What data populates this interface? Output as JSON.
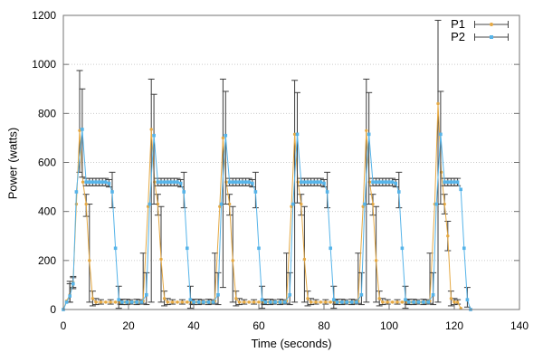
{
  "figure": {
    "background": "#ffffff",
    "border_color": "#737373",
    "tick_color": "#737373",
    "grid_color": "#cccccc",
    "errorbar_color": "#3c3c3c",
    "legend_line_color": "#444444"
  },
  "chart_data": {
    "type": "line",
    "style": "yerrorlines",
    "title": "",
    "xlabel": "Time (seconds)",
    "ylabel": "Power (watts)",
    "xlim": [
      0,
      140
    ],
    "ylim": [
      0,
      1200
    ],
    "x_ticks": [
      0,
      20,
      40,
      60,
      80,
      100,
      120,
      140
    ],
    "y_ticks": [
      0,
      200,
      400,
      600,
      800,
      1000,
      1200
    ],
    "grid": "horizontal-dotted",
    "legend_position": "top-right-inside",
    "point_format": [
      "time_s",
      "watts",
      "err_low",
      "err_high"
    ],
    "series": [
      {
        "name": "P1",
        "color": "#E5A944",
        "marker": "dot",
        "points": [
          [
            0,
            0
          ],
          [
            1,
            35
          ],
          [
            2,
            60,
            30,
            115
          ],
          [
            3,
            110,
            90,
            135
          ],
          [
            4,
            430
          ],
          [
            5,
            730,
            560,
            975
          ],
          [
            6,
            520
          ],
          [
            7,
            430,
            380,
            470
          ],
          [
            8,
            200,
            30,
            430
          ],
          [
            9,
            45,
            15,
            75
          ],
          [
            10,
            30,
            20,
            45
          ],
          [
            11.5,
            30,
            22,
            40
          ],
          [
            13,
            30
          ],
          [
            14.5,
            30,
            22,
            40
          ],
          [
            16,
            30
          ],
          [
            17.5,
            30,
            22,
            40
          ],
          [
            19,
            30
          ],
          [
            20.5,
            30,
            22,
            40
          ],
          [
            22,
            30
          ],
          [
            23.5,
            30,
            22,
            40
          ],
          [
            24.5,
            35,
            25,
            230
          ],
          [
            26,
            420
          ],
          [
            27,
            735,
            30,
            940
          ],
          [
            28,
            520
          ],
          [
            29,
            430,
            385,
            470
          ],
          [
            30,
            205,
            30,
            420
          ],
          [
            31,
            45,
            15,
            75
          ],
          [
            32,
            30,
            20,
            45
          ],
          [
            33.5,
            30,
            22,
            40
          ],
          [
            35,
            30
          ],
          [
            36.5,
            30,
            22,
            40
          ],
          [
            38,
            30
          ],
          [
            39.5,
            30,
            22,
            40
          ],
          [
            41,
            30
          ],
          [
            42.5,
            30,
            22,
            40
          ],
          [
            44,
            30
          ],
          [
            45.5,
            30,
            22,
            40
          ],
          [
            46.5,
            35,
            25,
            230
          ],
          [
            48,
            420
          ],
          [
            49,
            700,
            90,
            940
          ],
          [
            50,
            520
          ],
          [
            51,
            430,
            385,
            470
          ],
          [
            52,
            200,
            30,
            420
          ],
          [
            53,
            45,
            15,
            75
          ],
          [
            54,
            30,
            20,
            45
          ],
          [
            55.5,
            30,
            22,
            40
          ],
          [
            57,
            30
          ],
          [
            58.5,
            30,
            22,
            40
          ],
          [
            60,
            30
          ],
          [
            61.5,
            30,
            22,
            40
          ],
          [
            63,
            30
          ],
          [
            64.5,
            30,
            22,
            40
          ],
          [
            66,
            30
          ],
          [
            67.5,
            30,
            22,
            40
          ],
          [
            68.5,
            35,
            25,
            230
          ],
          [
            70,
            420
          ],
          [
            71,
            715,
            30,
            935
          ],
          [
            72,
            520
          ],
          [
            73,
            430,
            385,
            470
          ],
          [
            74,
            205,
            30,
            420
          ],
          [
            75,
            45,
            15,
            75
          ],
          [
            76,
            30,
            20,
            45
          ],
          [
            77.5,
            30,
            22,
            40
          ],
          [
            79,
            30
          ],
          [
            80.5,
            30,
            22,
            40
          ],
          [
            82,
            30
          ],
          [
            83.5,
            30,
            22,
            40
          ],
          [
            85,
            30
          ],
          [
            86.5,
            30,
            22,
            40
          ],
          [
            88,
            30
          ],
          [
            89.5,
            30,
            22,
            40
          ],
          [
            90.5,
            35,
            25,
            230
          ],
          [
            92,
            420
          ],
          [
            93,
            730,
            30,
            940
          ],
          [
            94,
            520
          ],
          [
            95,
            430,
            385,
            470
          ],
          [
            96,
            200,
            30,
            420
          ],
          [
            97,
            45,
            15,
            75
          ],
          [
            98,
            30,
            20,
            45
          ],
          [
            99.5,
            30,
            22,
            40
          ],
          [
            101,
            30
          ],
          [
            102.5,
            30,
            22,
            40
          ],
          [
            104,
            30
          ],
          [
            105.5,
            30,
            22,
            40
          ],
          [
            107,
            30
          ],
          [
            108.5,
            30,
            22,
            40
          ],
          [
            110,
            30
          ],
          [
            111.5,
            30,
            22,
            40
          ],
          [
            112.5,
            35,
            25,
            230
          ],
          [
            114,
            430
          ],
          [
            115,
            840,
            30,
            1180
          ],
          [
            116,
            560
          ],
          [
            117,
            430,
            390,
            470
          ],
          [
            118,
            300,
            240,
            360
          ],
          [
            119,
            45,
            15,
            75
          ],
          [
            120,
            30,
            20,
            45
          ],
          [
            121,
            30,
            22,
            40
          ],
          [
            122,
            5
          ]
        ]
      },
      {
        "name": "P2",
        "color": "#56B4E9",
        "marker": "square",
        "points": [
          [
            0,
            0
          ],
          [
            1,
            30
          ],
          [
            2,
            55,
            30,
            105
          ],
          [
            3,
            105,
            85,
            130
          ],
          [
            4,
            480
          ],
          [
            5.8,
            735,
            540,
            900
          ],
          [
            7,
            520,
            505,
            535
          ],
          [
            8,
            520,
            505,
            535
          ],
          [
            9,
            520,
            505,
            535
          ],
          [
            10,
            520,
            505,
            535
          ],
          [
            11,
            520,
            505,
            535
          ],
          [
            12,
            520,
            505,
            535
          ],
          [
            13,
            520,
            505,
            535
          ],
          [
            14,
            515,
            500,
            530
          ],
          [
            15,
            480,
            415,
            560
          ],
          [
            16,
            250
          ],
          [
            17,
            40,
            5,
            95
          ],
          [
            18,
            30,
            20,
            42
          ],
          [
            19.5,
            30,
            20,
            42
          ],
          [
            21,
            30
          ],
          [
            22.5,
            30,
            20,
            42
          ],
          [
            24,
            30
          ],
          [
            25.5,
            60,
            20,
            150
          ],
          [
            26.5,
            430
          ],
          [
            27.8,
            710,
            430,
            878
          ],
          [
            29,
            520,
            505,
            535
          ],
          [
            30,
            520,
            505,
            535
          ],
          [
            31,
            520,
            505,
            535
          ],
          [
            32,
            520,
            505,
            535
          ],
          [
            33,
            520,
            505,
            535
          ],
          [
            34,
            520,
            505,
            535
          ],
          [
            35,
            520,
            505,
            535
          ],
          [
            36,
            515,
            500,
            530
          ],
          [
            37,
            480,
            415,
            560
          ],
          [
            38,
            250
          ],
          [
            39,
            40,
            5,
            95
          ],
          [
            40,
            30,
            20,
            42
          ],
          [
            41.5,
            30,
            20,
            42
          ],
          [
            43,
            30
          ],
          [
            44.5,
            30,
            20,
            42
          ],
          [
            46,
            30
          ],
          [
            47.5,
            60,
            20,
            150
          ],
          [
            48.5,
            430
          ],
          [
            49.8,
            710,
            430,
            890
          ],
          [
            51,
            520,
            505,
            535
          ],
          [
            52,
            520,
            505,
            535
          ],
          [
            53,
            520,
            505,
            535
          ],
          [
            54,
            520,
            505,
            535
          ],
          [
            55,
            520,
            505,
            535
          ],
          [
            56,
            520,
            505,
            535
          ],
          [
            57,
            520,
            505,
            535
          ],
          [
            58,
            515,
            500,
            530
          ],
          [
            59,
            480,
            415,
            560
          ],
          [
            60,
            250
          ],
          [
            61,
            40,
            5,
            95
          ],
          [
            62,
            30,
            20,
            42
          ],
          [
            63.5,
            30,
            20,
            42
          ],
          [
            65,
            30
          ],
          [
            66.5,
            30,
            20,
            42
          ],
          [
            68,
            30
          ],
          [
            69.5,
            60,
            20,
            150
          ],
          [
            70.5,
            430
          ],
          [
            71.8,
            715,
            435,
            885
          ],
          [
            73,
            520,
            505,
            535
          ],
          [
            74,
            520,
            505,
            535
          ],
          [
            75,
            520,
            505,
            535
          ],
          [
            76,
            520,
            505,
            535
          ],
          [
            77,
            520,
            505,
            535
          ],
          [
            78,
            520,
            505,
            535
          ],
          [
            79,
            520,
            505,
            535
          ],
          [
            80,
            515,
            500,
            530
          ],
          [
            81,
            480,
            415,
            560
          ],
          [
            82,
            250
          ],
          [
            83,
            40,
            5,
            95
          ],
          [
            84,
            30,
            20,
            42
          ],
          [
            85.5,
            30,
            20,
            42
          ],
          [
            87,
            30
          ],
          [
            88.5,
            30,
            20,
            42
          ],
          [
            90,
            30
          ],
          [
            91.5,
            60,
            20,
            150
          ],
          [
            92.5,
            430
          ],
          [
            93.8,
            715,
            430,
            885
          ],
          [
            95,
            520,
            505,
            535
          ],
          [
            96,
            520,
            505,
            535
          ],
          [
            97,
            520,
            505,
            535
          ],
          [
            98,
            520,
            505,
            535
          ],
          [
            99,
            520,
            505,
            535
          ],
          [
            100,
            520,
            505,
            535
          ],
          [
            101,
            520,
            505,
            535
          ],
          [
            102,
            515,
            500,
            530
          ],
          [
            103,
            480,
            415,
            560
          ],
          [
            104,
            250
          ],
          [
            105,
            40,
            5,
            95
          ],
          [
            106,
            30,
            20,
            42
          ],
          [
            107.5,
            30,
            20,
            42
          ],
          [
            109,
            30
          ],
          [
            110.5,
            30,
            20,
            42
          ],
          [
            112,
            30
          ],
          [
            113.5,
            60,
            20,
            150
          ],
          [
            114.5,
            430
          ],
          [
            115.8,
            715,
            430,
            890
          ],
          [
            117,
            520,
            505,
            535
          ],
          [
            118,
            520,
            505,
            535
          ],
          [
            119,
            520,
            505,
            535
          ],
          [
            120,
            520,
            505,
            535
          ],
          [
            121,
            520,
            505,
            535
          ],
          [
            122,
            490
          ],
          [
            123,
            250
          ],
          [
            124,
            40,
            10,
            90
          ],
          [
            125,
            0
          ]
        ]
      }
    ]
  }
}
